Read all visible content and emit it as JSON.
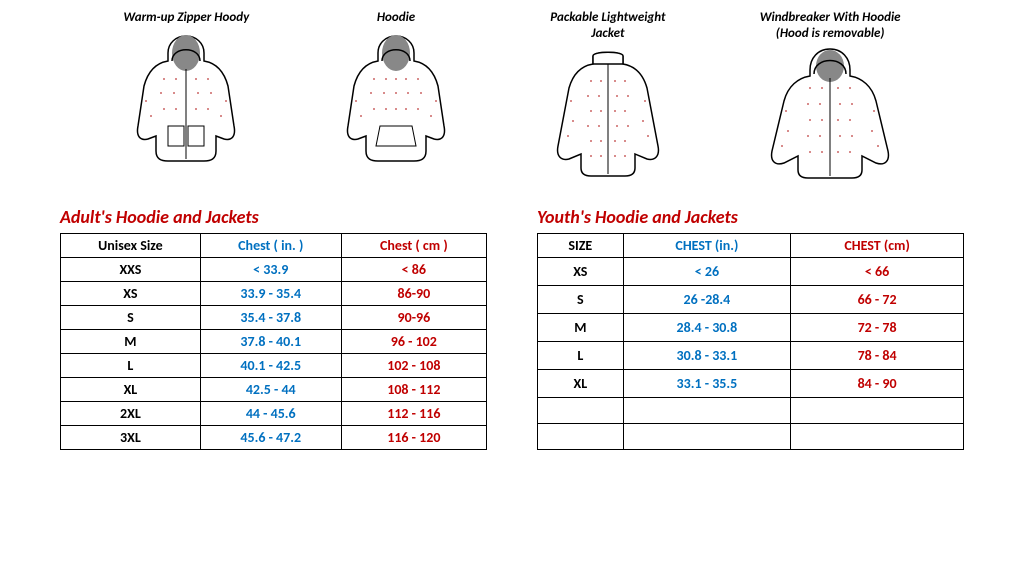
{
  "garments": [
    {
      "label": "Warm-up Zipper Hoody"
    },
    {
      "label": "Hoodie"
    },
    {
      "label": "Packable Lightweight\nJacket"
    },
    {
      "label": "Windbreaker With Hoodie\n(Hood is removable)"
    }
  ],
  "adult": {
    "title": "Adult's Hoodie and Jackets",
    "title_color": "#c00000",
    "headers": {
      "size": "Unisex Size",
      "in": "Chest ( in. )",
      "cm": "Chest ( cm )"
    },
    "header_colors": {
      "size": "#000000",
      "in": "#0070c0",
      "cm": "#c00000"
    },
    "rows": [
      {
        "size": "XXS",
        "in": "< 33.9",
        "cm": "< 86"
      },
      {
        "size": "XS",
        "in": "33.9 - 35.4",
        "cm": "86-90"
      },
      {
        "size": "S",
        "in": "35.4 - 37.8",
        "cm": "90-96"
      },
      {
        "size": "M",
        "in": "37.8 - 40.1",
        "cm": "96 - 102"
      },
      {
        "size": "L",
        "in": "40.1 - 42.5",
        "cm": "102 - 108"
      },
      {
        "size": "XL",
        "in": "42.5 - 44",
        "cm": "108 - 112"
      },
      {
        "size": "2XL",
        "in": "44 - 45.6",
        "cm": "112 - 116"
      },
      {
        "size": "3XL",
        "in": "45.6 - 47.2",
        "cm": "116 - 120"
      }
    ]
  },
  "youth": {
    "title": "Youth's Hoodie and Jackets",
    "title_color": "#c00000",
    "headers": {
      "size": "SIZE",
      "in": "CHEST (in.)",
      "cm": "CHEST (cm)"
    },
    "header_colors": {
      "size": "#000000",
      "in": "#0070c0",
      "cm": "#c00000"
    },
    "rows": [
      {
        "size": "XS",
        "in": "< 26",
        "cm": "< 66"
      },
      {
        "size": "S",
        "in": "26 -28.4",
        "cm": "66 - 72"
      },
      {
        "size": "M",
        "in": "28.4 - 30.8",
        "cm": "72 - 78"
      },
      {
        "size": "L",
        "in": "30.8 - 33.1",
        "cm": "78 - 84"
      },
      {
        "size": "XL",
        "in": "33.1 - 35.5",
        "cm": "84 - 90"
      }
    ],
    "empty_rows": 2
  },
  "colors": {
    "cell_size": "#000000",
    "cell_in": "#0070c0",
    "cell_cm": "#c00000"
  }
}
